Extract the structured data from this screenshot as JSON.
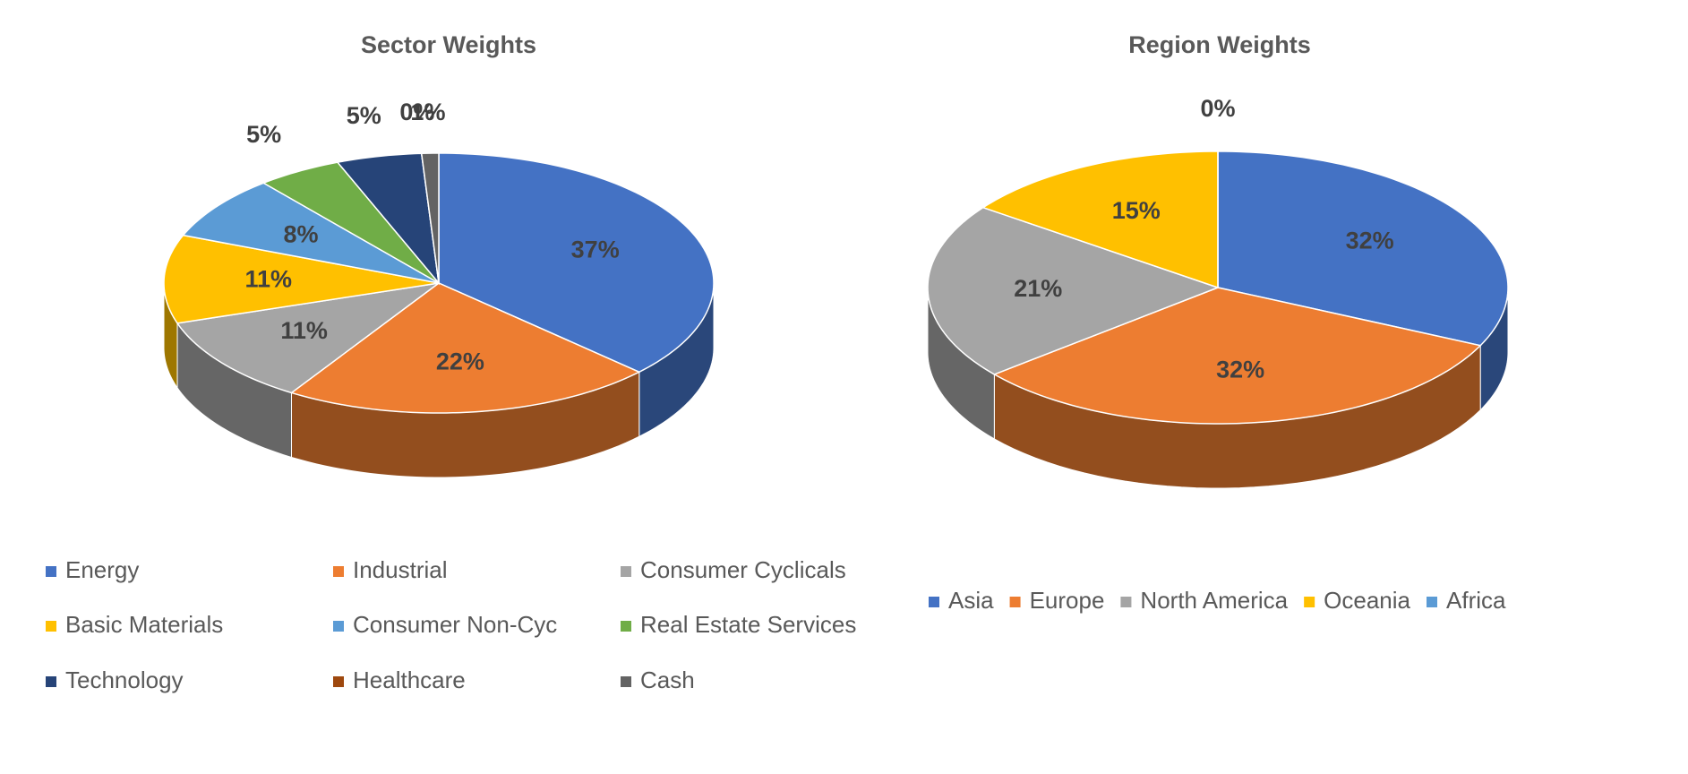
{
  "chart_data": [
    {
      "type": "pie3d",
      "title": "Sector Weights",
      "categories": [
        "Energy",
        "Industrial",
        "Consumer Cyclicals",
        "Basic Materials",
        "Consumer Non-Cyc",
        "Real Estate Services",
        "Technology",
        "Healthcare",
        "Cash"
      ],
      "values": [
        37,
        22,
        11,
        11,
        8,
        5,
        5,
        0,
        1
      ],
      "value_labels": [
        "37%",
        "22%",
        "11%",
        "11%",
        "8%",
        "5%",
        "5%",
        "0%",
        "1%"
      ],
      "colors": [
        "#4472c4",
        "#ed7d31",
        "#a5a5a5",
        "#ffc000",
        "#5b9bd5",
        "#70ad47",
        "#264478",
        "#9e480e",
        "#636363"
      ],
      "legend": "bottom"
    },
    {
      "type": "pie3d",
      "title": "Region Weights",
      "categories": [
        "Asia",
        "Europe",
        "North America",
        "Oceania",
        "Africa"
      ],
      "values": [
        32,
        32,
        21,
        15,
        0
      ],
      "value_labels": [
        "32%",
        "32%",
        "21%",
        "15%",
        "0%"
      ],
      "colors": [
        "#4472c4",
        "#ed7d31",
        "#a5a5a5",
        "#ffc000",
        "#5b9bd5"
      ],
      "legend": "bottom"
    }
  ]
}
